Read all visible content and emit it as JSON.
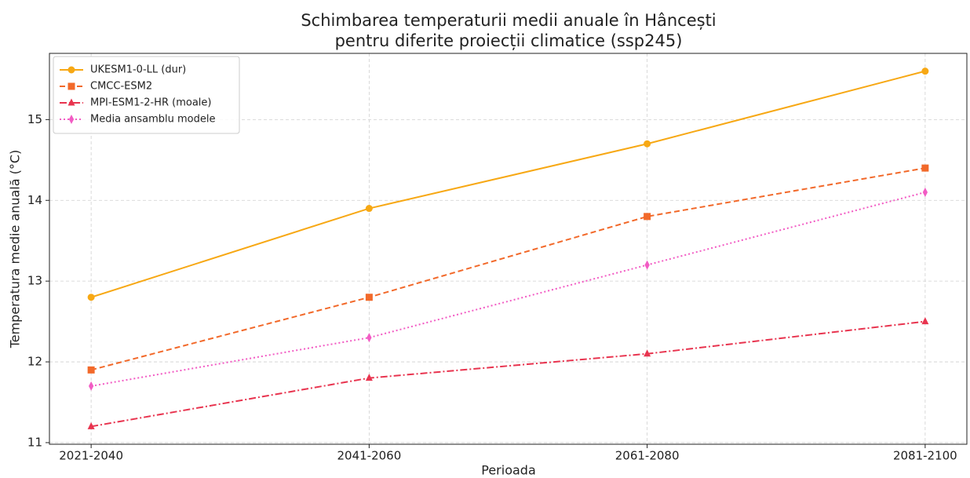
{
  "chart_data": {
    "type": "line",
    "title": [
      "Schimbarea temperaturii medii anuale în Hâncești",
      "pentru diferite proiecții climatice (ssp245)"
    ],
    "xlabel": "Perioada",
    "ylabel": "Temperatura medie anuală (°C)",
    "categories": [
      "2021-2040",
      "2041-2060",
      "2061-2080",
      "2081-2100"
    ],
    "series": [
      {
        "name": "UKESM1-0-LL (dur)",
        "color": "#f7a814",
        "linestyle": "solid",
        "marker": "circle",
        "values": [
          12.8,
          13.9,
          14.7,
          15.6
        ]
      },
      {
        "name": "CMCC-ESM2",
        "color": "#f2692a",
        "linestyle": "dashed",
        "marker": "square",
        "values": [
          11.9,
          12.8,
          13.8,
          14.4
        ]
      },
      {
        "name": "MPI-ESM1-2-HR (moale)",
        "color": "#e8344f",
        "linestyle": "dashdot",
        "marker": "triangle",
        "values": [
          11.2,
          11.8,
          12.1,
          12.5
        ]
      },
      {
        "name": "Media ansamblu modele",
        "color": "#f25cc4",
        "linestyle": "dotted",
        "marker": "diamond",
        "values": [
          11.7,
          12.3,
          13.2,
          14.1
        ]
      }
    ],
    "ylim": [
      10.98,
      15.82
    ],
    "yticks": [
      11,
      12,
      13,
      14,
      15
    ],
    "grid": true,
    "legend": "upper left"
  }
}
